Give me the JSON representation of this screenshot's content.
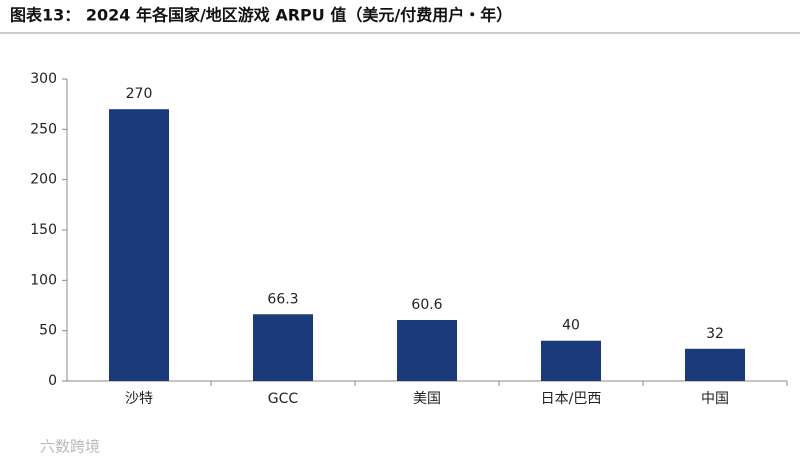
{
  "chart_data": {
    "type": "bar",
    "title": "图表13： 2024 年各国家/地区游戏 ARPU 值（美元/付费用户・年）",
    "categories": [
      "沙特",
      "GCC",
      "美国",
      "日本/巴西",
      "中国"
    ],
    "values": [
      270,
      66.3,
      60.6,
      40,
      32
    ],
    "color": "#1b3a7c",
    "ylim": [
      0,
      300
    ],
    "yticks": [
      0,
      50,
      100,
      150,
      200,
      250,
      300
    ],
    "grid": false,
    "watermark": "六数跨境"
  }
}
